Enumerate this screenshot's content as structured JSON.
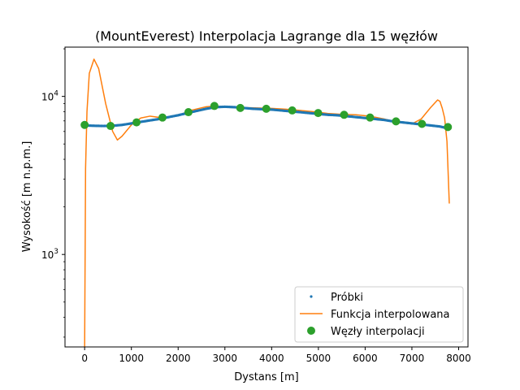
{
  "chart_data": {
    "type": "line",
    "title": "(MountEverest) Interpolacja Lagrange dla 15 węzłów",
    "xlabel": "Dystans [m]",
    "ylabel": "Wysokość [m n.p.m.]",
    "xlim": [
      -420,
      8200
    ],
    "ylim": [
      260,
      20500
    ],
    "yscale": "log",
    "grid": false,
    "legend_position": "lower right",
    "x_ticks": [
      0,
      1000,
      2000,
      3000,
      4000,
      5000,
      6000,
      7000,
      8000
    ],
    "x_tick_labels": [
      "0",
      "1000",
      "2000",
      "3000",
      "4000",
      "5000",
      "6000",
      "7000",
      "8000"
    ],
    "y_ticks": [
      1000,
      10000
    ],
    "y_tick_labels": [
      "10^3",
      "10^4"
    ],
    "series": [
      {
        "name": "Próbki",
        "style": "points",
        "color": "#1f77b4",
        "x": [
          0,
          200,
          400,
          600,
          800,
          1000,
          1200,
          1400,
          1600,
          1800,
          2000,
          2200,
          2400,
          2600,
          2800,
          3000,
          3200,
          3400,
          3600,
          3800,
          4000,
          4200,
          4400,
          4600,
          4800,
          5000,
          5200,
          5400,
          5600,
          5800,
          6000,
          6200,
          6400,
          6600,
          6800,
          7000,
          7200,
          7400,
          7600,
          7750
        ],
        "y": [
          6550,
          6520,
          6500,
          6520,
          6600,
          6750,
          6900,
          7050,
          7200,
          7400,
          7600,
          7850,
          8100,
          8350,
          8550,
          8600,
          8550,
          8450,
          8350,
          8300,
          8250,
          8150,
          8050,
          7950,
          7850,
          7750,
          7650,
          7600,
          7500,
          7400,
          7300,
          7200,
          7100,
          6950,
          6850,
          6750,
          6650,
          6550,
          6450,
          6300
        ]
      },
      {
        "name": "Funkcja interpolowana",
        "style": "line",
        "color": "#ff7f0e",
        "x": [
          0,
          20,
          50,
          100,
          200,
          300,
          450,
          600,
          700,
          800,
          1000,
          1200,
          1400,
          1700,
          2000,
          2300,
          2600,
          2800,
          3100,
          3400,
          3700,
          4000,
          4300,
          4600,
          4900,
          5200,
          5500,
          5800,
          6100,
          6400,
          6700,
          7000,
          7200,
          7400,
          7550,
          7600,
          7650,
          7700,
          7750,
          7800
        ],
        "y": [
          260,
          3500,
          8000,
          14000,
          17200,
          15000,
          9000,
          6000,
          5300,
          5600,
          6600,
          7300,
          7500,
          7300,
          7600,
          8200,
          8600,
          8700,
          8550,
          8500,
          8450,
          8400,
          8300,
          8150,
          8000,
          7800,
          7700,
          7650,
          7500,
          7200,
          6850,
          6700,
          7200,
          8500,
          9500,
          9300,
          8400,
          7300,
          5200,
          2100
        ]
      },
      {
        "name": "Węzły interpolacji",
        "style": "markers",
        "color": "#2ca02c",
        "x": [
          0,
          555,
          1110,
          1665,
          2220,
          2775,
          3330,
          3885,
          4440,
          4995,
          5550,
          6105,
          6660,
          7215,
          7770
        ],
        "y": [
          6600,
          6500,
          6850,
          7350,
          7950,
          8700,
          8450,
          8350,
          8150,
          7850,
          7650,
          7350,
          6950,
          6700,
          6400
        ]
      }
    ]
  }
}
